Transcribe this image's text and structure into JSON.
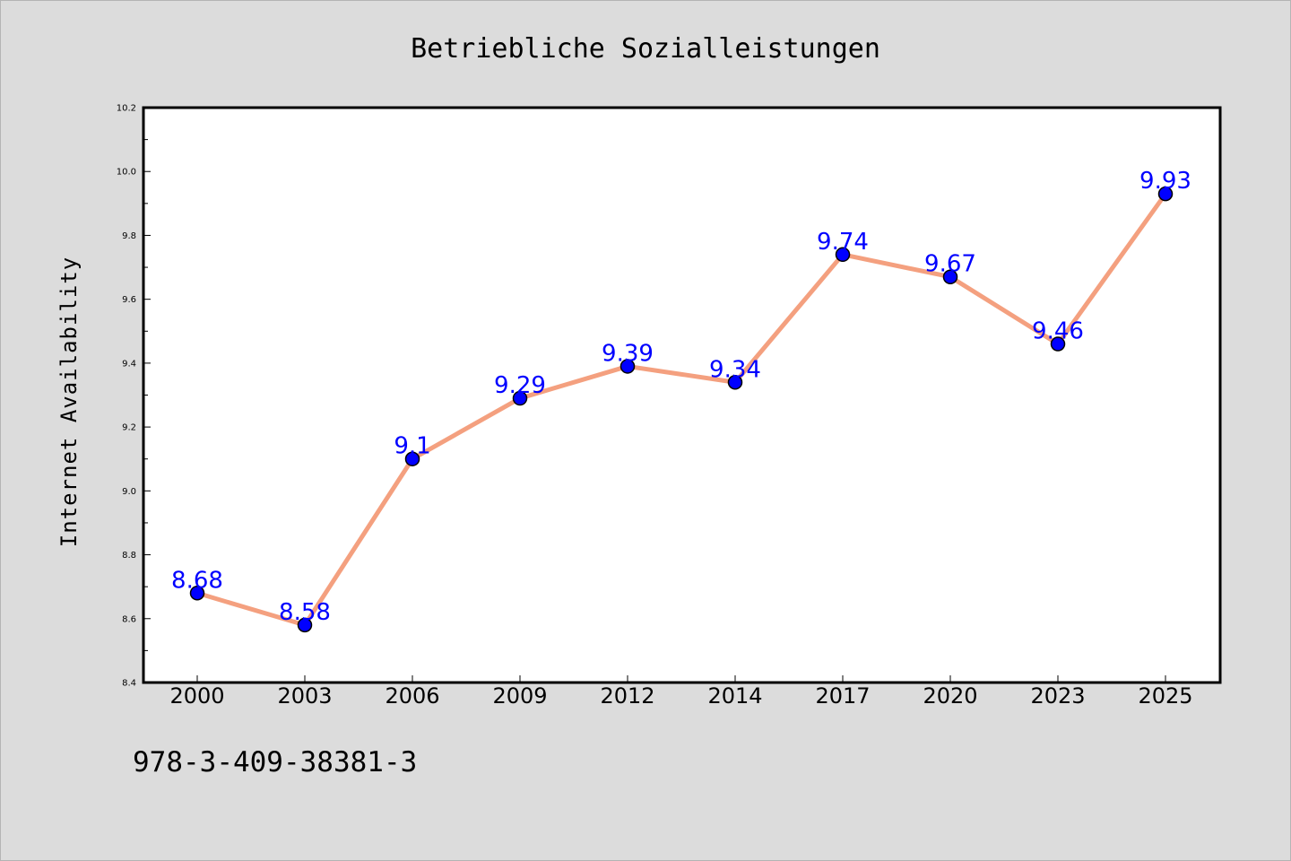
{
  "chart_data": {
    "type": "line",
    "title": "Betriebliche Sozialleistungen",
    "xlabel": "",
    "ylabel": "Internet Availability",
    "categories": [
      "2000",
      "2003",
      "2006",
      "2009",
      "2012",
      "2014",
      "2017",
      "2020",
      "2023",
      "2025"
    ],
    "series": [
      {
        "values": [
          8.68,
          8.58,
          9.1,
          9.29,
          9.39,
          9.34,
          9.74,
          9.67,
          9.46,
          9.93
        ],
        "labels": [
          "8.68",
          "8.58",
          "9.1",
          "9.29",
          "9.39",
          "9.34",
          "9.74",
          "9.67",
          "9.46",
          "9.93"
        ],
        "line_color": "#f4a07f",
        "marker_color": "#0000ff",
        "label_color": "#0000ff"
      }
    ],
    "ylim": [
      8.4,
      10.2
    ],
    "yticks": [
      "8.4",
      "8.6",
      "8.8",
      "9.0",
      "9.2",
      "9.4",
      "9.6",
      "9.8",
      "10.0",
      "10.2"
    ],
    "grid": false,
    "legend": "none"
  },
  "footer": {
    "code": "978-3-409-38381-3"
  }
}
